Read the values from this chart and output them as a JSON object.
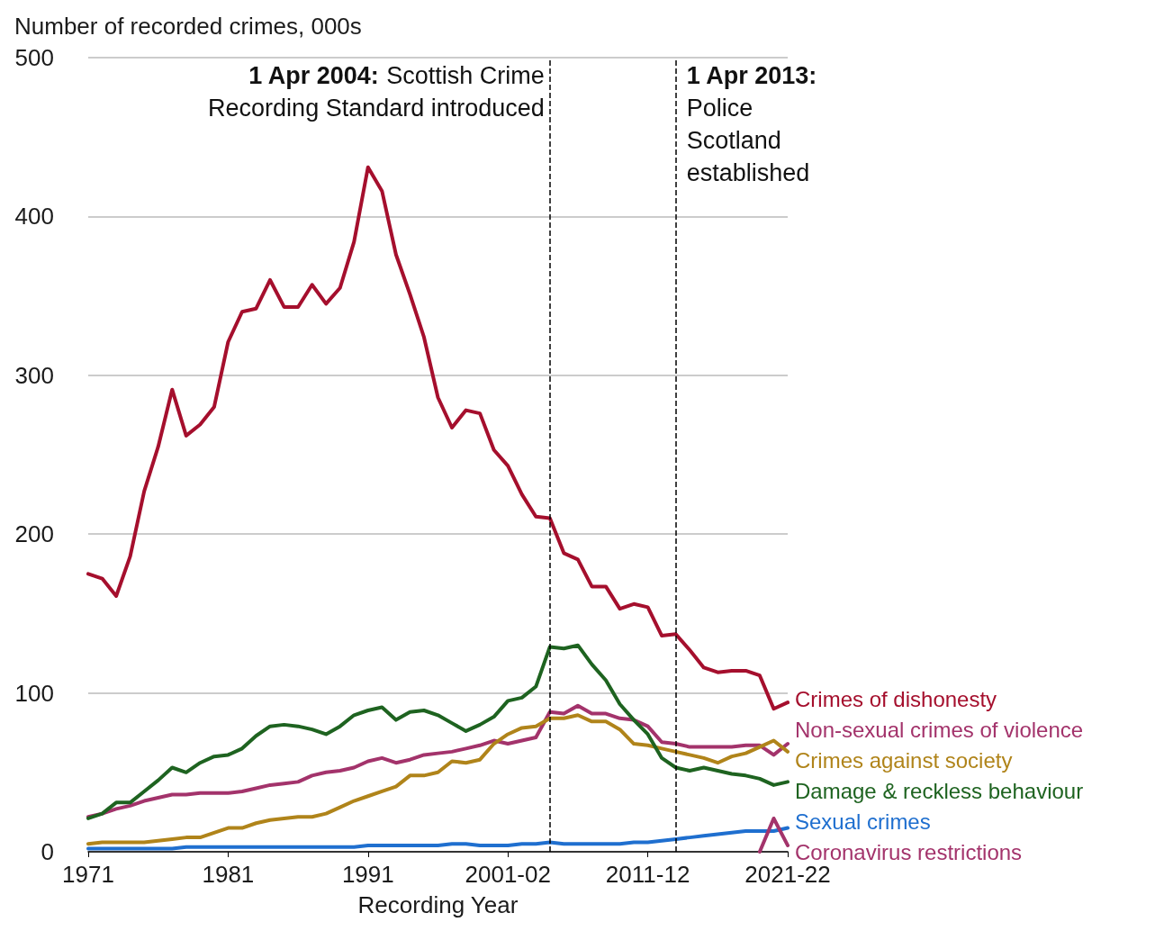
{
  "chart_data": {
    "type": "line",
    "ylabel": "Number of recorded crimes, 000s",
    "xlabel": "Recording Year",
    "x": [
      1971,
      1972,
      1973,
      1974,
      1975,
      1976,
      1977,
      1978,
      1979,
      1980,
      1981,
      1982,
      1983,
      1984,
      1985,
      1986,
      1987,
      1988,
      1989,
      1990,
      1991,
      1992,
      1993,
      1994,
      1995,
      1996,
      1997,
      1998,
      1999,
      2000,
      2001,
      2002,
      2003,
      2004,
      2005,
      2006,
      2007,
      2008,
      2009,
      2010,
      2011,
      2012,
      2013,
      2014,
      2015,
      2016,
      2017,
      2018,
      2019,
      2020,
      2021
    ],
    "xlim": [
      1971,
      2021
    ],
    "xticks": [
      1971,
      1981,
      1991,
      {
        "value": 2001,
        "label": "2001-02"
      },
      {
        "value": 2011,
        "label": "2011-12"
      },
      {
        "value": 2021,
        "label": "2021-22"
      }
    ],
    "ylim": [
      0,
      500
    ],
    "yticks": [
      0,
      100,
      200,
      300,
      400,
      500
    ],
    "grid": "y",
    "legend": false,
    "series": [
      {
        "name": "Crimes of dishonesty",
        "color": "#a50f2d",
        "values": [
          175,
          172,
          161,
          186,
          227,
          255,
          291,
          262,
          269,
          280,
          321,
          340,
          342,
          360,
          343,
          343,
          357,
          345,
          355,
          384,
          431,
          416,
          376,
          351,
          324,
          286,
          267,
          278,
          276,
          253,
          243,
          225,
          211,
          210,
          188,
          184,
          167,
          167,
          153,
          156,
          154,
          136,
          137,
          127,
          116,
          113,
          114,
          114,
          111,
          90,
          94
        ]
      },
      {
        "name": "Non-sexual crimes of violence",
        "color": "#a3336b",
        "values": [
          22,
          24,
          27,
          29,
          32,
          34,
          36,
          36,
          37,
          37,
          37,
          38,
          40,
          42,
          43,
          44,
          48,
          50,
          51,
          53,
          57,
          59,
          56,
          58,
          61,
          62,
          63,
          65,
          67,
          70,
          68,
          70,
          72,
          88,
          87,
          92,
          87,
          87,
          84,
          83,
          79,
          69,
          68,
          66,
          66,
          66,
          66,
          67,
          67,
          61,
          68
        ]
      },
      {
        "name": "Crimes against society",
        "color": "#b0841a",
        "values": [
          5,
          6,
          6,
          6,
          6,
          7,
          8,
          9,
          9,
          12,
          15,
          15,
          18,
          20,
          21,
          22,
          22,
          24,
          28,
          32,
          35,
          38,
          41,
          48,
          48,
          50,
          57,
          56,
          58,
          68,
          74,
          78,
          79,
          84,
          84,
          86,
          82,
          82,
          77,
          68,
          67,
          65,
          63,
          61,
          59,
          56,
          60,
          62,
          66,
          70,
          63
        ]
      },
      {
        "name": "Damage & reckless behaviour",
        "color": "#1e6320",
        "values": [
          21,
          24,
          31,
          31,
          38,
          45,
          53,
          50,
          56,
          60,
          61,
          65,
          73,
          79,
          80,
          79,
          77,
          74,
          79,
          86,
          89,
          91,
          83,
          88,
          89,
          86,
          81,
          76,
          80,
          85,
          95,
          97,
          104,
          129,
          128,
          130,
          118,
          108,
          93,
          83,
          74,
          59,
          53,
          51,
          53,
          51,
          49,
          48,
          46,
          42,
          44
        ]
      },
      {
        "name": "Sexual crimes",
        "color": "#1f6fcf",
        "values": [
          2,
          2,
          2,
          2,
          2,
          2,
          2,
          3,
          3,
          3,
          3,
          3,
          3,
          3,
          3,
          3,
          3,
          3,
          3,
          3,
          4,
          4,
          4,
          4,
          4,
          4,
          5,
          5,
          4,
          4,
          4,
          5,
          5,
          6,
          5,
          5,
          5,
          5,
          5,
          6,
          6,
          7,
          8,
          9,
          10,
          11,
          12,
          13,
          13,
          13,
          15
        ]
      },
      {
        "name": "Coronavirus restrictions",
        "color": "#a3336b",
        "values": [
          null,
          null,
          null,
          null,
          null,
          null,
          null,
          null,
          null,
          null,
          null,
          null,
          null,
          null,
          null,
          null,
          null,
          null,
          null,
          null,
          null,
          null,
          null,
          null,
          null,
          null,
          null,
          null,
          null,
          null,
          null,
          null,
          null,
          null,
          null,
          null,
          null,
          null,
          null,
          null,
          null,
          null,
          null,
          null,
          null,
          null,
          null,
          null,
          0,
          21,
          4
        ]
      }
    ],
    "ref_lines": [
      {
        "axis": "x",
        "value": 2004,
        "label": "1 Apr 2004: Scottish Crime Recording Standard introduced",
        "line_style": "dashed"
      },
      {
        "axis": "x",
        "value": 2013,
        "label": "1 Apr 2013: Police Scotland established",
        "line_style": "dashed"
      }
    ]
  }
}
